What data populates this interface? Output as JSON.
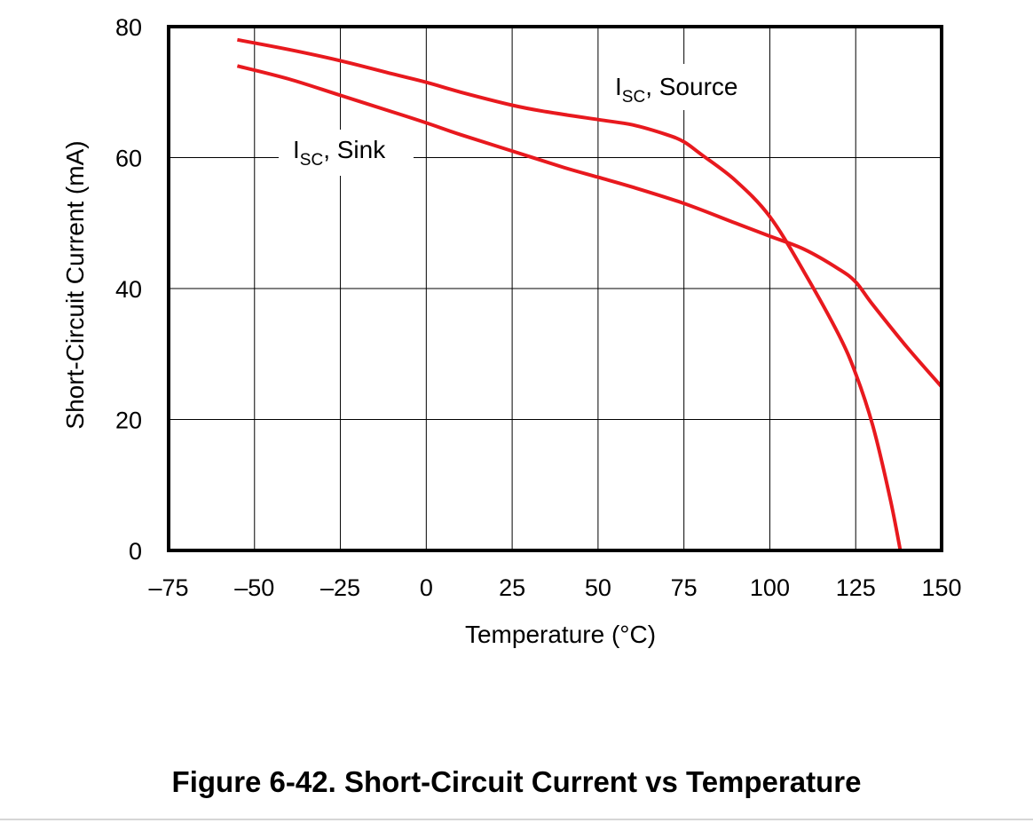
{
  "figure": {
    "caption": "Figure 6-42. Short-Circuit Current vs Temperature"
  },
  "chart_data": {
    "type": "line",
    "xlabel": "Temperature (°C)",
    "ylabel": "Short-Circuit Current (mA)",
    "xlim": [
      -75,
      150
    ],
    "ylim": [
      0,
      80
    ],
    "xticks": [
      -75,
      -50,
      -25,
      0,
      25,
      50,
      75,
      100,
      125,
      150
    ],
    "xtick_labels": [
      "–75",
      "–50",
      "–25",
      "0",
      "25",
      "50",
      "75",
      "100",
      "125",
      "150"
    ],
    "yticks": [
      0,
      20,
      40,
      60,
      80
    ],
    "ytick_labels": [
      "0",
      "20",
      "40",
      "60",
      "80"
    ],
    "grid": true,
    "legend": "none",
    "line_color": "#e8191e",
    "series": [
      {
        "label_main": "I",
        "label_sub": "SC",
        "label_rest": ", Source",
        "x": [
          -55,
          -40,
          -25,
          -10,
          0,
          10,
          25,
          35,
          50,
          60,
          70,
          75,
          80,
          90,
          100,
          110,
          120,
          125,
          130,
          135,
          138
        ],
        "y": [
          78,
          76.5,
          74.8,
          72.8,
          71.5,
          70,
          68,
          67,
          65.8,
          65,
          63.5,
          62.4,
          60.5,
          56.5,
          51,
          42.5,
          33,
          27,
          19,
          8,
          0
        ]
      },
      {
        "label_main": "I",
        "label_sub": "SC",
        "label_rest": ", Sink",
        "x": [
          -55,
          -40,
          -25,
          -10,
          0,
          10,
          25,
          40,
          50,
          60,
          75,
          90,
          100,
          110,
          120,
          125,
          130,
          140,
          150
        ],
        "y": [
          74,
          72,
          69.5,
          67,
          65.3,
          63.5,
          61,
          58.5,
          57,
          55.5,
          53,
          50,
          48,
          46,
          43,
          41,
          37.5,
          31,
          25
        ]
      }
    ]
  }
}
